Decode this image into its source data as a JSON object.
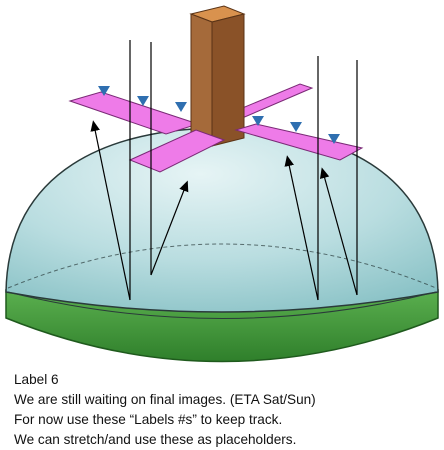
{
  "caption": {
    "title": "Label 6",
    "line1": "We are still waiting on final images. (ETA Sat/Sun)",
    "line2": "For now use these “Labels #s” to keep track.",
    "line3": "We can stretch/and use these as placeholders."
  },
  "colors": {
    "dome_top": "#cfe8ec",
    "dome_mid": "#9ed0d4",
    "dome_green": "#3f9a3a",
    "panel": "#ee7be8",
    "mast_front": "#a56a3a",
    "mast_side": "#8a5228",
    "mast_top": "#d9924e",
    "arrow_green": "#7fb23a",
    "arrow_head": "#2f6fb0"
  }
}
